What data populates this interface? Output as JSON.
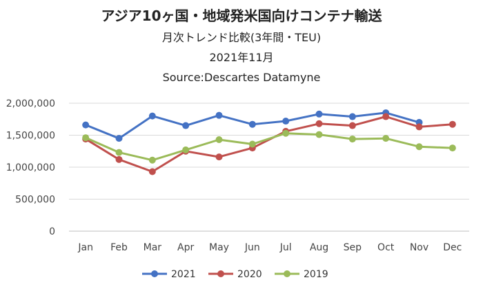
{
  "chart_data": {
    "type": "line",
    "title": "アジア10ヶ国・地域発米国向けコンテナ輸送",
    "subtitle": "月次トレンド比較(3年間・TEU)",
    "period": "2021年11月",
    "source": "Source:Descartes Datamyne",
    "categories": [
      "Jan",
      "Feb",
      "Mar",
      "Apr",
      "May",
      "Jun",
      "Jul",
      "Aug",
      "Sep",
      "Oct",
      "Nov",
      "Dec"
    ],
    "ylim": [
      0,
      2000000
    ],
    "yticks": [
      {
        "value": 0,
        "label": "0"
      },
      {
        "value": 500000,
        "label": "500,000"
      },
      {
        "value": 1000000,
        "label": "1,000,000"
      },
      {
        "value": 1500000,
        "label": "1,500,000"
      },
      {
        "value": 2000000,
        "label": "2,000,000"
      }
    ],
    "grid": true,
    "legend_position": "bottom",
    "series": [
      {
        "name": "2021",
        "color": "#4472c4",
        "values": [
          1660000,
          1450000,
          1800000,
          1650000,
          1810000,
          1670000,
          1720000,
          1830000,
          1790000,
          1850000,
          1700000,
          null
        ]
      },
      {
        "name": "2020",
        "color": "#c0504d",
        "values": [
          1440000,
          1120000,
          930000,
          1250000,
          1160000,
          1300000,
          1560000,
          1680000,
          1650000,
          1790000,
          1630000,
          1670000
        ]
      },
      {
        "name": "2019",
        "color": "#9bbb59",
        "values": [
          1460000,
          1230000,
          1110000,
          1270000,
          1430000,
          1360000,
          1530000,
          1510000,
          1440000,
          1450000,
          1320000,
          1300000
        ]
      }
    ]
  }
}
